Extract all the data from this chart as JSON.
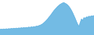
{
  "values": [
    80,
    85,
    80,
    88,
    82,
    90,
    85,
    92,
    88,
    95,
    90,
    98,
    92,
    100,
    95,
    102,
    98,
    105,
    100,
    108,
    102,
    110,
    105,
    115,
    108,
    118,
    112,
    122,
    118,
    128,
    125,
    135,
    140,
    150,
    160,
    175,
    192,
    210,
    230,
    255,
    275,
    300,
    325,
    350,
    370,
    390,
    410,
    425,
    440,
    450,
    460,
    465,
    455,
    445,
    430,
    410,
    385,
    355,
    320,
    280,
    240,
    195,
    155,
    125,
    180,
    230,
    210,
    250,
    240,
    260,
    255,
    270,
    265,
    275,
    270,
    280
  ],
  "line_color": "#5aafe0",
  "fill_color": "#5aafe0",
  "fill_alpha": 0.85,
  "background_color": "#ffffff",
  "ylim_min": 0
}
